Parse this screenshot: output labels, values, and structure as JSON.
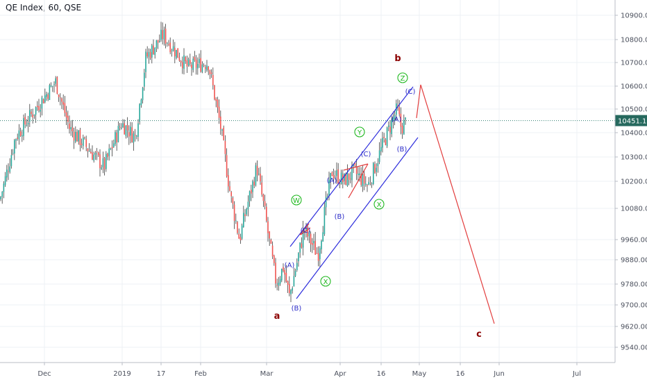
{
  "chart_data": {
    "type": "candlestick",
    "title": "QE Index, 60, QSE",
    "last_price": "10451.13",
    "y_ticks": [
      "10900.00",
      "10800.00",
      "10700.00",
      "10600.00",
      "10500.00",
      "10400.00",
      "10300.00",
      "10200.00",
      "10080.00",
      "9960.00",
      "9880.00",
      "9780.00",
      "9700.00",
      "9620.00",
      "9540.00"
    ],
    "x_ticks": [
      "Dec",
      "2019",
      "17",
      "Feb",
      "Mar",
      "Apr",
      "16",
      "May",
      "16",
      "Jun",
      "Jul"
    ],
    "grid": true,
    "price_path": [
      [
        "start",
        10120
      ],
      [
        "Nov-30",
        10380
      ],
      [
        "Dec-05",
        10620
      ],
      [
        "Dec-10",
        10420
      ],
      [
        "Dec-18",
        10260
      ],
      [
        "Dec-26",
        10440
      ],
      [
        "2019-01-01",
        10380
      ],
      [
        "Jan-06",
        10720
      ],
      [
        "Jan-14",
        10820
      ],
      [
        "Jan-22",
        10680
      ],
      [
        "Feb-01",
        10700
      ],
      [
        "Feb-08",
        10420
      ],
      [
        "Feb-15",
        10120
      ],
      [
        "Feb-20",
        9960
      ],
      [
        "Feb-25",
        10260
      ],
      [
        "Mar-05",
        9780
      ],
      [
        "Mar-07",
        9850
      ],
      [
        "Mar-08",
        9730
      ],
      [
        "Mar-14",
        10000
      ],
      [
        "Mar-19",
        9900
      ],
      [
        "Mar-27",
        10240
      ],
      [
        "Apr-03",
        10200
      ],
      [
        "Apr-08",
        10240
      ],
      [
        "Apr-13",
        10180
      ],
      [
        "Apr-17",
        10340
      ],
      [
        "Apr-21",
        10500
      ],
      [
        "Apr-22",
        10420
      ],
      [
        "Apr-24",
        10451.13
      ]
    ],
    "annotations": {
      "major_waves": [
        "a",
        "b",
        "c"
      ],
      "circled": [
        "W",
        "X",
        "Y",
        "X",
        "Z"
      ],
      "sub": [
        "(A)",
        "(B)",
        "(C)",
        "(A)",
        "(B)",
        "(C)",
        "(A)",
        "(B)",
        "(C)"
      ]
    }
  }
}
